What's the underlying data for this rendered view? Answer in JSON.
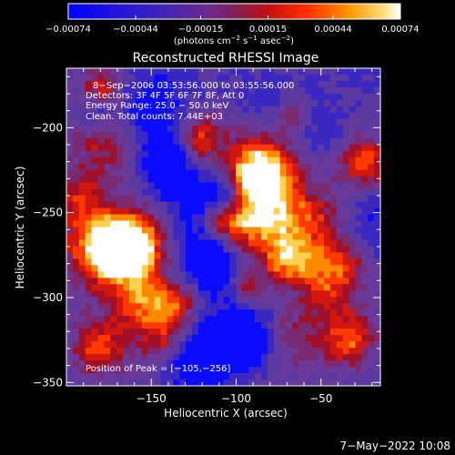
{
  "chart_data": {
    "type": "heatmap",
    "title": "Reconstructed RHESSI Image",
    "xlabel": "Heliocentric X (arcsec)",
    "ylabel": "Heliocentric Y (arcsec)",
    "xlim": [
      -200,
      -15
    ],
    "ylim": [
      -352,
      -165
    ],
    "xticks": [
      -150,
      -100,
      -50
    ],
    "xtick_labels": [
      "−150",
      "−100",
      "−50"
    ],
    "yticks": [
      -200,
      -250,
      -300,
      -350
    ],
    "ytick_labels": [
      "−200",
      "−250",
      "−300",
      "−350"
    ],
    "colorbar": {
      "min": -0.00074,
      "max": 0.00074,
      "ticks": [
        -0.00074,
        -0.00044,
        -0.00015,
        0.00015,
        0.00044,
        0.00074
      ],
      "tick_labels": [
        "−0.00074",
        "−0.00044",
        "−0.00015",
        "0.00015",
        "0.00044",
        "0.00074"
      ],
      "unit_text": "(photons cm",
      "unit_exp1": "−2",
      "unit_mid": " s",
      "unit_exp2": "−1",
      "unit_mid2": " asec",
      "unit_exp3": "−2",
      "unit_end": ")",
      "colors": [
        "#0000ff",
        "#4a28a6",
        "#5a3aa0",
        "#7a1e7a",
        "#b01020",
        "#ff2000",
        "#ff8000",
        "#ffd060",
        "#ffffff"
      ]
    },
    "annotations": {
      "time_range": "8−Sep−2006 03:53:56.000 to 03:55:56.000",
      "detectors": "Detectors: 3F 4F 5F 6F 7F 8F, Att 0",
      "energy": "Energy Range: 25.0 − 50.0 keV",
      "clean": "Clean. Total counts: 7.44E+03",
      "peak": "Position of Peak = [−105,−256]"
    },
    "peak": {
      "x": -105,
      "y": -256
    },
    "grid": false
  },
  "footer": {
    "timestamp": "7−May−2022 10:08"
  }
}
